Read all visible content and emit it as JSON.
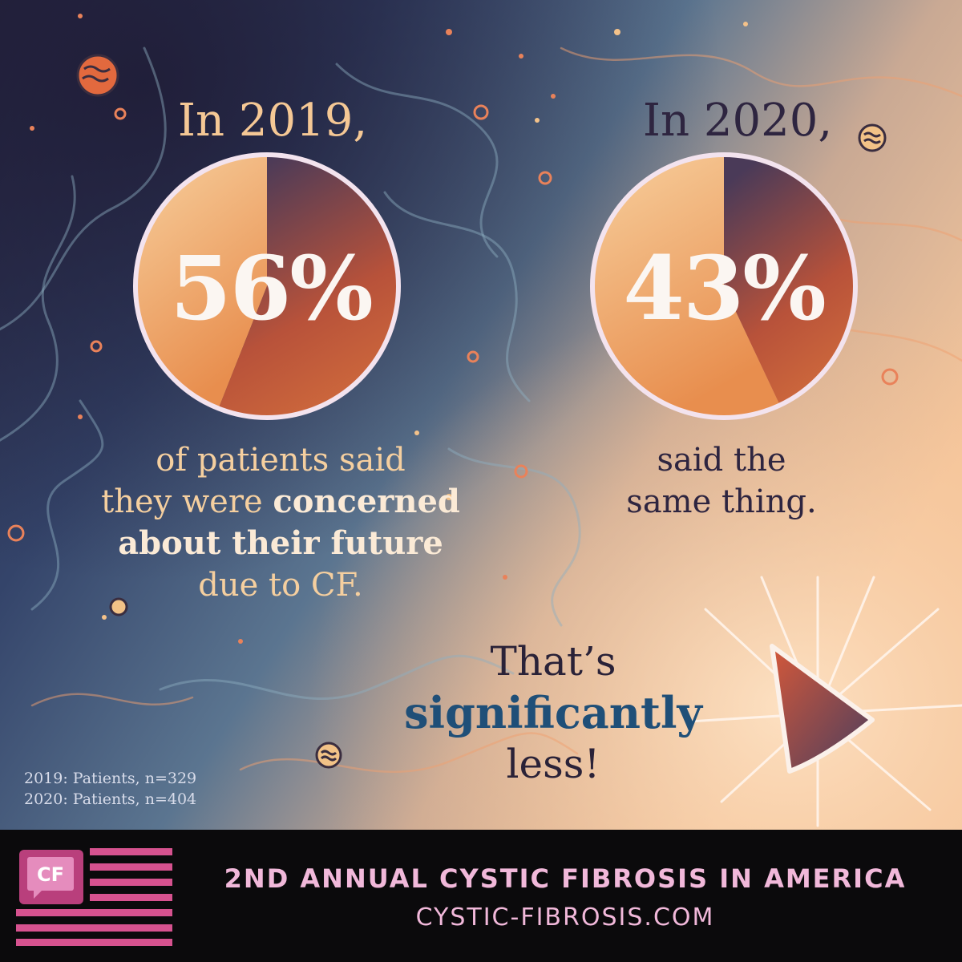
{
  "colors": {
    "accent_orange": "#f5c895",
    "dark_text": "#2e2540",
    "emphasis_blue": "#1f4f78",
    "brand_pink": "#d6528f",
    "footer_bg": "#0b0a0c"
  },
  "chart_data": [
    {
      "type": "pie",
      "title": "In 2019,",
      "values": [
        56,
        44
      ],
      "data_label": "56%",
      "caption_lines": [
        {
          "text": "of patients said",
          "bold": false
        },
        {
          "parts": [
            {
              "text": "they were ",
              "bold": false
            },
            {
              "text": "concerned",
              "bold": true
            }
          ]
        },
        {
          "text": "about their future",
          "bold": true
        },
        {
          "text": "due to CF.",
          "bold": false
        }
      ]
    },
    {
      "type": "pie",
      "title": "In 2020,",
      "values": [
        43,
        57
      ],
      "data_label": "43%",
      "caption_lines": [
        {
          "text": "said the"
        },
        {
          "text": "same thing."
        }
      ]
    }
  ],
  "conclusion": {
    "line1": "That’s",
    "line2": "significantly",
    "line3": "less!"
  },
  "sample_notes": [
    "2019: Patients, n=329",
    "2020: Patients, n=404"
  ],
  "footer": {
    "logo_text": "CF",
    "title": "2ND ANNUAL CYSTIC FIBROSIS IN AMERICA",
    "url": "CYSTIC-FIBROSIS.COM"
  }
}
